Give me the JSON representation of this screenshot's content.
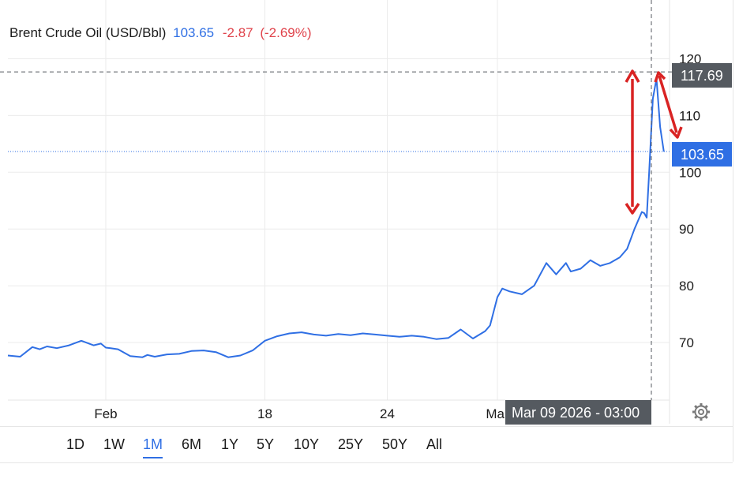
{
  "legend": {
    "name": "Brent Crude Oil (USD/Bbl)",
    "price": "103.65",
    "change": "-2.87",
    "change_pct": "(-2.69%)"
  },
  "crosshair": {
    "price_label": "117.69",
    "time_label": "Mar 09 2026 - 03:00"
  },
  "last_price_label": "103.65",
  "colors": {
    "line": "#2f6fe4",
    "negative": "#e0434b",
    "annotation": "#d92323",
    "crosshair_bg": "#555a60"
  },
  "tabs": [
    "1D",
    "1W",
    "1M",
    "6M",
    "1Y",
    "5Y",
    "10Y",
    "25Y",
    "50Y",
    "All"
  ],
  "active_tab": "1M",
  "icons": {
    "settings": "gear-icon"
  },
  "chart_data": {
    "type": "line",
    "title": "Brent Crude Oil (USD/Bbl)",
    "xlabel": "",
    "ylabel": "",
    "ylim": [
      60,
      123
    ],
    "y_ticks": [
      70,
      80,
      90,
      100,
      110,
      120
    ],
    "x_ticks": [
      {
        "label": "Feb",
        "t": 4.0
      },
      {
        "label": "18",
        "t": 10.5
      },
      {
        "label": "24",
        "t": 15.5
      },
      {
        "label": "Mar",
        "t": 20.0
      }
    ],
    "grid": true,
    "series": [
      {
        "name": "Brent Crude Oil (USD/Bbl)",
        "t": [
          0,
          0.5,
          1.0,
          1.3,
          1.6,
          2.0,
          2.5,
          3.0,
          3.5,
          3.8,
          4.0,
          4.2,
          4.5,
          5.0,
          5.5,
          5.7,
          6.0,
          6.5,
          7.0,
          7.5,
          8.0,
          8.5,
          9.0,
          9.5,
          10.0,
          10.5,
          11.0,
          11.5,
          12.0,
          12.5,
          13.0,
          13.5,
          14.0,
          14.5,
          15.0,
          15.5,
          16.0,
          16.5,
          17.0,
          17.5,
          18.0,
          18.5,
          19.0,
          19.5,
          19.7,
          20.0,
          20.2,
          20.5,
          21.0,
          21.5,
          22.0,
          22.4,
          22.8,
          23.0,
          23.4,
          23.8,
          24.2,
          24.6,
          25.0,
          25.3,
          25.6,
          25.9,
          26.0,
          26.1,
          26.2,
          26.35,
          26.5,
          26.65,
          26.8
        ],
        "values": [
          67.7,
          67.5,
          69.2,
          68.8,
          69.3,
          69.0,
          69.5,
          70.3,
          69.5,
          69.8,
          69.1,
          69.0,
          68.8,
          67.6,
          67.4,
          67.8,
          67.5,
          67.9,
          68.0,
          68.5,
          68.6,
          68.3,
          67.4,
          67.7,
          68.6,
          70.3,
          71.1,
          71.6,
          71.8,
          71.4,
          71.2,
          71.5,
          71.3,
          71.6,
          71.4,
          71.2,
          71.0,
          71.2,
          71.0,
          70.6,
          70.8,
          72.3,
          70.7,
          72.0,
          73.0,
          78.0,
          79.5,
          79.0,
          78.5,
          80.0,
          84.0,
          82.0,
          84.0,
          82.5,
          83.0,
          84.5,
          83.5,
          84.0,
          85.0,
          86.5,
          90.0,
          93.0,
          92.8,
          92.0,
          100.0,
          113.0,
          116.5,
          108.0,
          103.65
        ]
      }
    ]
  }
}
